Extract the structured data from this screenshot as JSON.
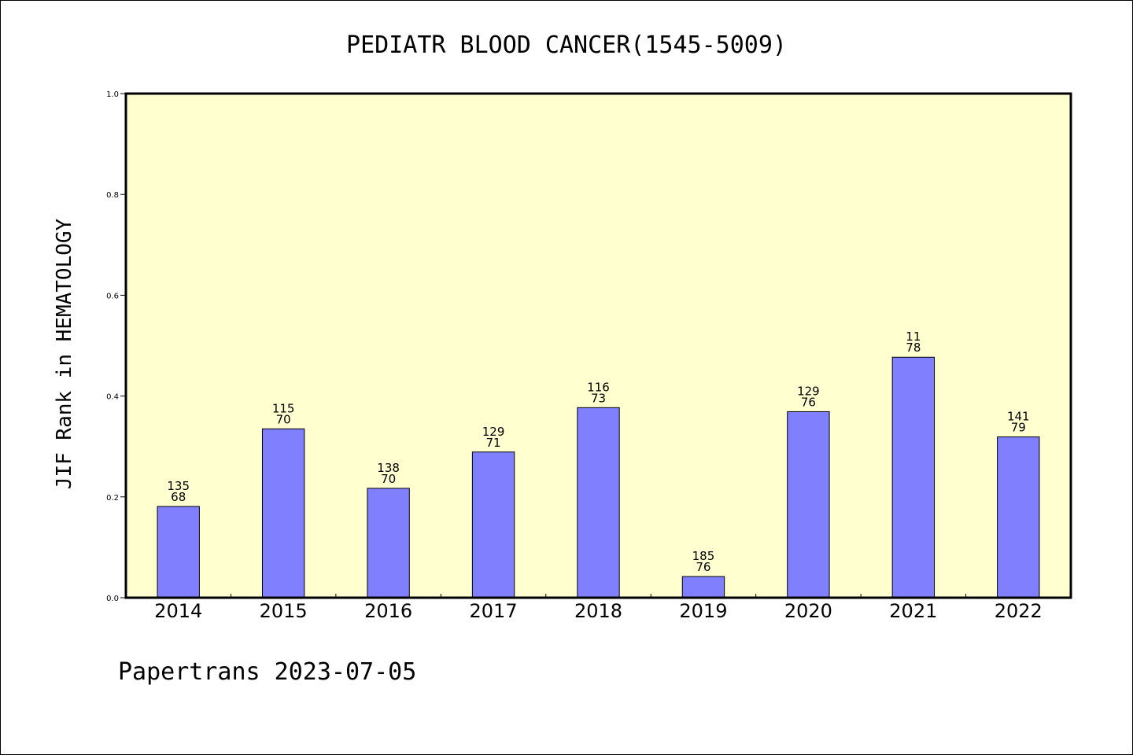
{
  "chart_data": {
    "type": "bar",
    "title": "PEDIATR BLOOD CANCER(1545-5009)",
    "ylabel": "JIF Rank in HEMATOLOGY",
    "xlabel": "",
    "footer": "Papertrans 2023-07-05",
    "ylim": [
      0.0,
      1.0
    ],
    "yticks": [
      "0.0",
      "0.2",
      "0.4",
      "0.6",
      "0.8",
      "1.0"
    ],
    "grid": false,
    "plot_background": "#ffffd0",
    "bar_color": "#8080ff",
    "categories": [
      "2014",
      "2015",
      "2016",
      "2017",
      "2018",
      "2019",
      "2020",
      "2021",
      "2022"
    ],
    "values": [
      0.181,
      0.335,
      0.217,
      0.289,
      0.377,
      0.042,
      0.369,
      0.477,
      0.319
    ],
    "labels_top": [
      "135",
      "115",
      "138",
      "129",
      "116",
      "185",
      "129",
      "11",
      "141"
    ],
    "labels_bottom": [
      "68",
      "70",
      "70",
      "71",
      "73",
      "76",
      "76",
      "78",
      "79"
    ]
  }
}
